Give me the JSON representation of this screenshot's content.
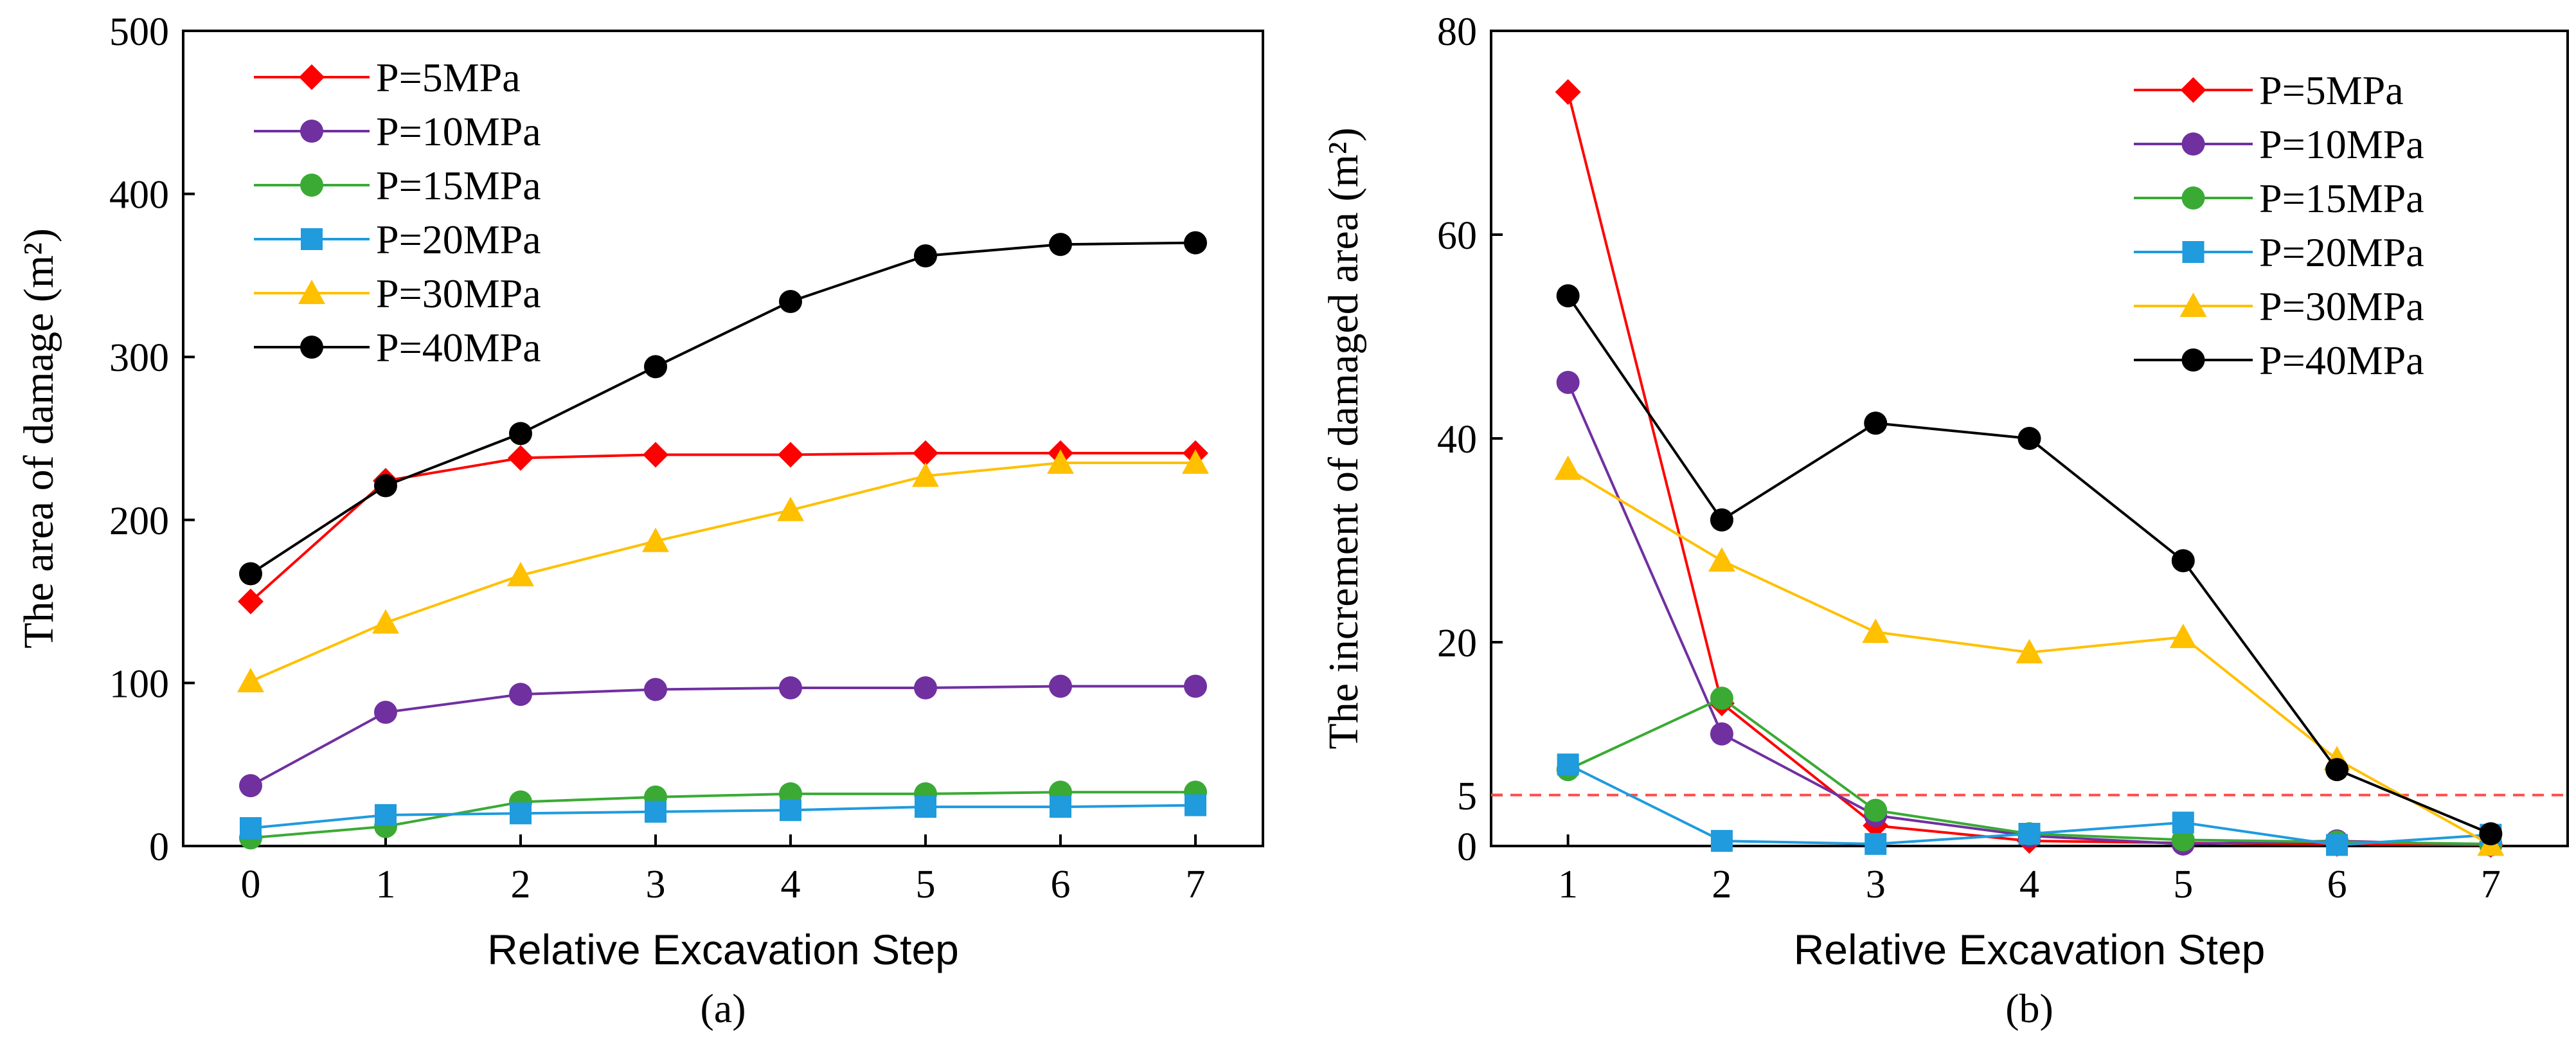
{
  "chart_data": [
    {
      "type": "line",
      "panel_label": "(a)",
      "xlabel": "Relative Excavation Step",
      "ylabel": "The area of  damage (m²)",
      "x": [
        0,
        1,
        2,
        3,
        4,
        5,
        6,
        7
      ],
      "xlim": [
        -0.5,
        7.5
      ],
      "ylim": [
        0,
        500
      ],
      "yticks": [
        0,
        100,
        200,
        300,
        400,
        500
      ],
      "grid": false,
      "legend_position": "top-left",
      "series": [
        {
          "name": "P=5MPa",
          "color": "#ff0000",
          "marker": "diamond",
          "values": [
            150,
            224,
            238,
            240,
            240,
            241,
            241,
            241
          ]
        },
        {
          "name": "P=10MPa",
          "color": "#7030a0",
          "marker": "circle",
          "values": [
            37,
            82,
            93,
            96,
            97,
            97,
            98,
            98
          ]
        },
        {
          "name": "P=15MPa",
          "color": "#3aaa35",
          "marker": "circle",
          "values": [
            5,
            12,
            27,
            30,
            32,
            32,
            33,
            33
          ]
        },
        {
          "name": "P=20MPa",
          "color": "#1f9bde",
          "marker": "square",
          "values": [
            11,
            19,
            20,
            21,
            22,
            24,
            24,
            25
          ]
        },
        {
          "name": "P=30MPa",
          "color": "#ffc000",
          "marker": "triangle",
          "values": [
            101,
            137,
            166,
            187,
            206,
            227,
            235,
            235
          ]
        },
        {
          "name": "P=40MPa",
          "color": "#000000",
          "marker": "circle",
          "values": [
            167,
            221,
            253,
            294,
            334,
            362,
            369,
            370
          ]
        }
      ]
    },
    {
      "type": "line",
      "panel_label": "(b)",
      "xlabel": "Relative Excavation Step",
      "ylabel": "The increment of damaged area (m²)",
      "x": [
        1,
        2,
        3,
        4,
        5,
        6,
        7
      ],
      "xlim": [
        0.5,
        7.5
      ],
      "ylim": [
        0,
        80
      ],
      "yticks": [
        0,
        5,
        20,
        40,
        60,
        80
      ],
      "grid": false,
      "legend_position": "top-right",
      "reference_line": {
        "y": 5,
        "color": "#ff4d4d",
        "style": "dashed"
      },
      "series": [
        {
          "name": "P=5MPa",
          "color": "#ff0000",
          "marker": "diamond",
          "values": [
            74,
            14,
            2,
            0.5,
            0.3,
            0.2,
            0.1
          ]
        },
        {
          "name": "P=10MPa",
          "color": "#7030a0",
          "marker": "circle",
          "values": [
            45.5,
            11,
            3,
            1,
            0.2,
            0.5,
            0.1
          ]
        },
        {
          "name": "P=15MPa",
          "color": "#3aaa35",
          "marker": "circle",
          "values": [
            7.5,
            14.5,
            3.5,
            1.2,
            0.6,
            0.4,
            0.2
          ]
        },
        {
          "name": "P=20MPa",
          "color": "#1f9bde",
          "marker": "square",
          "values": [
            8,
            0.5,
            0.2,
            1.2,
            2.3,
            0.1,
            1.1
          ]
        },
        {
          "name": "P=30MPa",
          "color": "#ffc000",
          "marker": "triangle",
          "values": [
            37,
            28,
            21,
            19,
            20.5,
            8.5,
            0.1
          ]
        },
        {
          "name": "P=40MPa",
          "color": "#000000",
          "marker": "circle",
          "values": [
            54,
            32,
            41.5,
            40,
            28,
            7.5,
            1.2
          ]
        }
      ]
    }
  ]
}
